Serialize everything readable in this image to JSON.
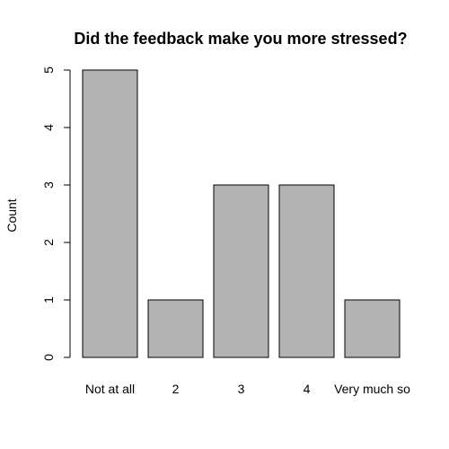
{
  "chart_data": {
    "type": "bar",
    "title": "Did the feedback make you more stressed?",
    "xlabel": "",
    "ylabel": "Count",
    "categories": [
      "Not at all",
      "2",
      "3",
      "4",
      "Very much so"
    ],
    "values": [
      5,
      1,
      3,
      3,
      1
    ],
    "ylim": [
      0,
      5
    ],
    "yticks": [
      0,
      1,
      2,
      3,
      4,
      5
    ],
    "grid": false,
    "bar_color": "#b3b3b3",
    "bar_edge_color": "#000000"
  }
}
